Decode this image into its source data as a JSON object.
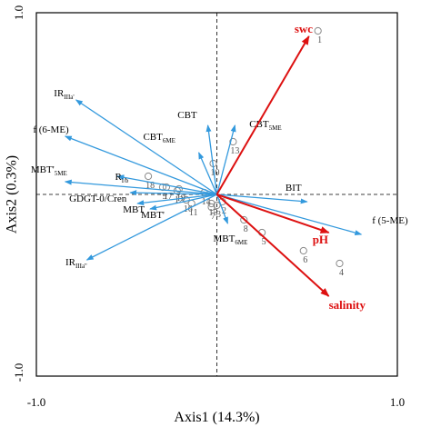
{
  "chart_data": {
    "type": "scatter",
    "subtype": "RDA biplot",
    "title": "",
    "xlabel": "Axis1 (14.3%)",
    "ylabel": "Axis2 (0.3%)",
    "xlim": [
      -1.0,
      1.0
    ],
    "ylim": [
      -1.0,
      1.0
    ],
    "x_ticks": [
      "-1.0",
      "1.0"
    ],
    "y_ticks": [
      "1.0",
      "-1.0"
    ],
    "colors": {
      "variables": "#3399dd",
      "environment": "#dd1111",
      "sites": "#888888",
      "frame": "#000000"
    },
    "variables": [
      {
        "name": "IR",
        "sub": "IIIa'",
        "x": -0.78,
        "y": 0.52,
        "ldx": -0.01,
        "ldy": 0.02
      },
      {
        "name": "f (6-ME)",
        "sub": "",
        "x": -0.84,
        "y": 0.32,
        "ldx": 0.02,
        "ldy": 0.02
      },
      {
        "name": "MBT'",
        "sub": "5ME",
        "x": -0.84,
        "y": 0.07,
        "ldx": 0.01,
        "ldy": 0.05
      },
      {
        "name": "R",
        "sub": "i/b",
        "x": -0.55,
        "y": 0.1,
        "ldx": 0.06,
        "ldy": -0.02
      },
      {
        "name": "GDGT-0/Cren",
        "sub": "",
        "x": -0.48,
        "y": 0.01,
        "ldx": -0.02,
        "ldy": -0.05
      },
      {
        "name": "MBT",
        "sub": "",
        "x": -0.44,
        "y": -0.05,
        "ldx": 0.04,
        "ldy": -0.05
      },
      {
        "name": "MBT'",
        "sub": "",
        "x": -0.37,
        "y": -0.08,
        "ldx": 0.08,
        "ldy": -0.05
      },
      {
        "name": "IR",
        "sub": "IIIa''",
        "x": -0.72,
        "y": -0.36,
        "ldx": 0.0,
        "ldy": -0.03
      },
      {
        "name": "CBT",
        "sub": "",
        "x": -0.05,
        "y": 0.38,
        "ldx": -0.06,
        "ldy": 0.04
      },
      {
        "name": "CBT",
        "sub": "6ME",
        "x": -0.1,
        "y": 0.23,
        "ldx": -0.13,
        "ldy": 0.07
      },
      {
        "name": "CBT",
        "sub": "5ME",
        "x": 0.1,
        "y": 0.38,
        "ldx": 0.08,
        "ldy": -0.01
      },
      {
        "name": "BIT",
        "sub": "",
        "x": 0.5,
        "y": -0.04,
        "ldx": -0.12,
        "ldy": 0.06
      },
      {
        "name": "MBT",
        "sub": "6ME",
        "x": 0.06,
        "y": -0.16,
        "ldx": -0.08,
        "ldy": -0.1
      },
      {
        "name": "f (5-ME)",
        "sub": "",
        "x": 0.8,
        "y": -0.22,
        "ldx": 0.06,
        "ldy": 0.06
      }
    ],
    "environment": [
      {
        "name": "swc",
        "x": 0.51,
        "y": 0.87,
        "ldx": -0.08,
        "ldy": 0.02
      },
      {
        "name": "pH",
        "x": 0.62,
        "y": -0.21,
        "ldx": -0.09,
        "ldy": -0.06
      },
      {
        "name": "salinity",
        "x": 0.62,
        "y": -0.56,
        "ldx": 0.0,
        "ldy": -0.07
      }
    ],
    "sites": [
      {
        "label": "1",
        "x": 0.56,
        "y": 0.9
      },
      {
        "label": "2",
        "x": 0.03,
        "y": -0.04
      },
      {
        "label": "3",
        "x": 0.0,
        "y": -0.06
      },
      {
        "label": "4",
        "x": 0.68,
        "y": -0.38
      },
      {
        "label": "5",
        "x": 0.25,
        "y": -0.21
      },
      {
        "label": "6",
        "x": 0.48,
        "y": -0.31
      },
      {
        "label": "7",
        "x": -0.03,
        "y": -0.07
      },
      {
        "label": "8",
        "x": 0.15,
        "y": -0.14
      },
      {
        "label": "9",
        "x": -0.3,
        "y": 0.04
      },
      {
        "label": "10",
        "x": -0.02,
        "y": 0.17
      },
      {
        "label": "11",
        "x": -0.14,
        "y": -0.05
      },
      {
        "label": "12",
        "x": -0.22,
        "y": 0.02
      },
      {
        "label": "13",
        "x": 0.09,
        "y": 0.29
      },
      {
        "label": "14",
        "x": -0.07,
        "y": 0.01
      },
      {
        "label": "15",
        "x": -0.03,
        "y": -0.05
      },
      {
        "label": "16",
        "x": -0.17,
        "y": -0.03
      },
      {
        "label": "17",
        "x": -0.28,
        "y": 0.04
      },
      {
        "label": "18",
        "x": -0.38,
        "y": 0.1
      },
      {
        "label": "19",
        "x": -0.21,
        "y": 0.03
      }
    ]
  }
}
